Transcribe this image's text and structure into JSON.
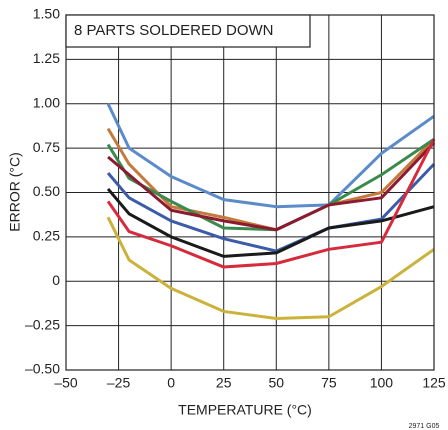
{
  "chart_data": {
    "type": "line",
    "annotation": "8 PARTS SOLDERED DOWN",
    "footnote": "2971 G05",
    "xlabel": "TEMPERATURE (°C)",
    "ylabel": "ERROR (°C)",
    "x": [
      -30,
      -20,
      0,
      25,
      50,
      75,
      100,
      125
    ],
    "series": [
      {
        "color": "#5b8bc9",
        "values": [
          1.0,
          0.75,
          0.59,
          0.46,
          0.42,
          0.43,
          0.72,
          0.93
        ]
      },
      {
        "color": "#c47a3c",
        "values": [
          0.86,
          0.66,
          0.42,
          0.36,
          0.29,
          0.43,
          0.5,
          0.8
        ]
      },
      {
        "color": "#3b8a4c",
        "values": [
          0.77,
          0.58,
          0.45,
          0.3,
          0.29,
          0.43,
          0.6,
          0.8
        ]
      },
      {
        "color": "#8c1a30",
        "values": [
          0.7,
          0.6,
          0.4,
          0.34,
          0.29,
          0.43,
          0.47,
          0.78
        ]
      },
      {
        "color": "#3b5ca8",
        "values": [
          0.61,
          0.47,
          0.34,
          0.24,
          0.17,
          0.3,
          0.35,
          0.66
        ]
      },
      {
        "color": "#1a1a1a",
        "values": [
          0.52,
          0.38,
          0.25,
          0.14,
          0.16,
          0.3,
          0.34,
          0.42
        ]
      },
      {
        "color": "#d52b3c",
        "values": [
          0.45,
          0.28,
          0.2,
          0.08,
          0.1,
          0.18,
          0.22,
          0.8
        ]
      },
      {
        "color": "#cbb23a",
        "values": [
          0.36,
          0.12,
          -0.04,
          -0.17,
          -0.21,
          -0.2,
          -0.03,
          0.18
        ]
      }
    ],
    "xlim": [
      -50,
      125
    ],
    "xticks": [
      {
        "value": -50,
        "label": "–50"
      },
      {
        "value": -25,
        "label": "–25"
      },
      0,
      25,
      50,
      75,
      100,
      125
    ],
    "ylim": [
      -0.5,
      1.5
    ],
    "yticks": [
      {
        "value": -0.5,
        "label": "–0.50"
      },
      {
        "value": -0.25,
        "label": "–0.25"
      },
      0,
      {
        "value": 0.25,
        "label": "0.25"
      },
      {
        "value": 0.5,
        "label": "0.50"
      },
      {
        "value": 0.75,
        "label": "0.75"
      },
      {
        "value": 1,
        "label": "1.00"
      },
      {
        "value": 1.25,
        "label": "1.25"
      },
      {
        "value": 1.5,
        "label": "1.50"
      }
    ],
    "grid": true
  }
}
